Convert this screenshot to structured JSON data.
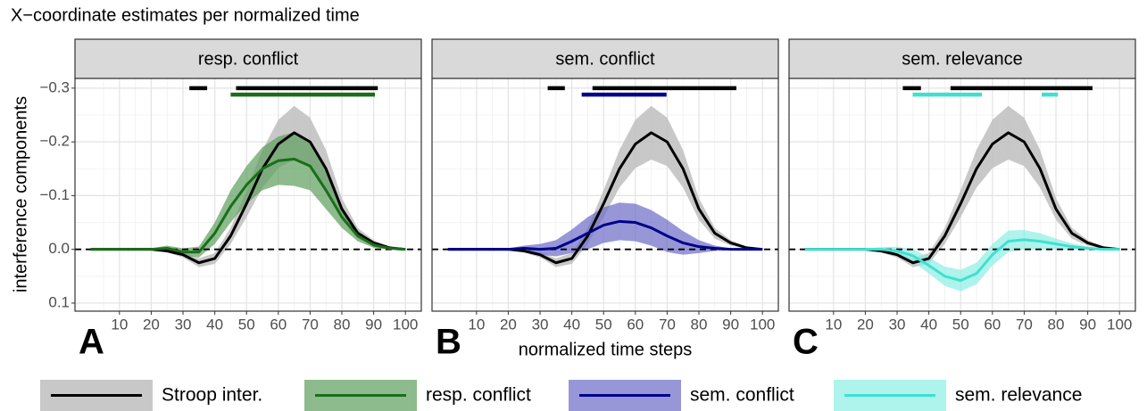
{
  "title": "X−coordinate estimates per normalized time",
  "y_label": "interference components",
  "x_label": "normalized time steps",
  "chart_data": [
    {
      "type": "line",
      "title": "resp. conflict",
      "panel_label": "A",
      "x": [
        1,
        5,
        10,
        15,
        20,
        25,
        30,
        35,
        40,
        45,
        50,
        55,
        60,
        65,
        70,
        75,
        80,
        85,
        90,
        95,
        100
      ],
      "xlim": [
        -4,
        105
      ],
      "xticks": [
        10,
        20,
        30,
        40,
        50,
        60,
        70,
        80,
        90,
        100
      ],
      "ylim": [
        -0.318,
        0.115
      ],
      "y_reversed": true,
      "grid": true,
      "hline": 0,
      "yticks": [
        {
          "value": -0.3,
          "label": "−0.3"
        },
        {
          "value": -0.2,
          "label": "−0.2"
        },
        {
          "value": -0.1,
          "label": "−0.1"
        },
        {
          "value": 0,
          "label": "0.0"
        },
        0.1
      ],
      "series": [
        {
          "name": "Stroop inter.",
          "color": "#000000",
          "band_color": "#bebebe",
          "values": [
            0,
            0,
            0,
            0,
            0,
            0.003,
            0.01,
            0.025,
            0.017,
            -0.025,
            -0.085,
            -0.15,
            -0.196,
            -0.217,
            -0.2,
            -0.15,
            -0.075,
            -0.03,
            -0.012,
            -0.003,
            0
          ],
          "lower": [
            0,
            0,
            0,
            0,
            -0.001,
            0,
            0.005,
            0.017,
            0.007,
            -0.04,
            -0.11,
            -0.185,
            -0.241,
            -0.267,
            -0.245,
            -0.185,
            -0.095,
            -0.04,
            -0.017,
            -0.005,
            0
          ],
          "upper": [
            0,
            0,
            0,
            0,
            0.001,
            0.006,
            0.015,
            0.033,
            0.027,
            -0.01,
            -0.06,
            -0.115,
            -0.151,
            -0.167,
            -0.155,
            -0.115,
            -0.055,
            -0.02,
            -0.007,
            -0.001,
            0
          ]
        },
        {
          "name": "resp. conflict",
          "color": "#1a6e1a",
          "band_color": "#5c9e5c",
          "values": [
            0,
            0,
            0,
            0,
            0,
            -0.002,
            0.005,
            0.005,
            -0.03,
            -0.08,
            -0.12,
            -0.15,
            -0.165,
            -0.168,
            -0.155,
            -0.11,
            -0.06,
            -0.025,
            -0.008,
            -0.002,
            0
          ],
          "lower": [
            0,
            0,
            0,
            0,
            -0.002,
            -0.007,
            -0.002,
            -0.005,
            -0.05,
            -0.11,
            -0.155,
            -0.19,
            -0.21,
            -0.218,
            -0.2,
            -0.145,
            -0.08,
            -0.035,
            -0.013,
            -0.004,
            0
          ],
          "upper": [
            0,
            0,
            0,
            0,
            0.002,
            0.003,
            0.012,
            0.015,
            -0.01,
            -0.05,
            -0.085,
            -0.11,
            -0.12,
            -0.118,
            -0.11,
            -0.075,
            -0.04,
            -0.015,
            -0.003,
            0,
            0
          ]
        }
      ],
      "significance": [
        {
          "color": "#000000",
          "y": -0.3,
          "intervals": [
            [
              32,
              37.6
            ],
            [
              46.7,
              91.3
            ]
          ]
        },
        {
          "color": "#1a6e1a",
          "y": -0.288,
          "intervals": [
            [
              45,
              90.4
            ]
          ]
        }
      ]
    },
    {
      "type": "line",
      "title": "sem. conflict",
      "panel_label": "B",
      "x": [
        1,
        5,
        10,
        15,
        20,
        25,
        30,
        35,
        40,
        45,
        50,
        55,
        60,
        65,
        70,
        75,
        80,
        85,
        90,
        95,
        100
      ],
      "xlim": [
        -4,
        105
      ],
      "xticks": [
        10,
        20,
        30,
        40,
        50,
        60,
        70,
        80,
        90,
        100
      ],
      "ylim": [
        -0.318,
        0.115
      ],
      "y_reversed": true,
      "grid": true,
      "hline": 0,
      "series": [
        {
          "name": "Stroop inter.",
          "color": "#000000",
          "band_color": "#bebebe",
          "values": [
            0,
            0,
            0,
            0,
            0,
            0.003,
            0.01,
            0.025,
            0.017,
            -0.025,
            -0.085,
            -0.15,
            -0.196,
            -0.217,
            -0.2,
            -0.15,
            -0.075,
            -0.03,
            -0.012,
            -0.003,
            0
          ],
          "lower": [
            0,
            0,
            0,
            0,
            -0.001,
            0,
            0.005,
            0.017,
            0.007,
            -0.04,
            -0.11,
            -0.185,
            -0.241,
            -0.267,
            -0.245,
            -0.185,
            -0.095,
            -0.04,
            -0.017,
            -0.005,
            0
          ],
          "upper": [
            0,
            0,
            0,
            0,
            0.001,
            0.006,
            0.015,
            0.033,
            0.027,
            -0.01,
            -0.06,
            -0.115,
            -0.151,
            -0.167,
            -0.155,
            -0.115,
            -0.055,
            -0.02,
            -0.007,
            -0.001,
            0
          ]
        },
        {
          "name": "sem. conflict",
          "color": "#00008b",
          "band_color": "#6b6bc8",
          "values": [
            0,
            0,
            0,
            0,
            0,
            -0.002,
            0,
            -0.002,
            -0.015,
            -0.03,
            -0.045,
            -0.052,
            -0.05,
            -0.04,
            -0.025,
            -0.012,
            -0.005,
            -0.002,
            0,
            0,
            0
          ],
          "lower": [
            0,
            0,
            0,
            0,
            -0.002,
            -0.007,
            -0.01,
            -0.017,
            -0.037,
            -0.06,
            -0.078,
            -0.087,
            -0.085,
            -0.073,
            -0.055,
            -0.034,
            -0.017,
            -0.007,
            -0.002,
            0,
            0
          ],
          "upper": [
            0,
            0,
            0,
            0,
            0.002,
            0.003,
            0.01,
            0.013,
            0.007,
            0,
            -0.012,
            -0.017,
            -0.015,
            -0.007,
            0.005,
            0.01,
            0.007,
            0.003,
            0.002,
            0,
            0
          ]
        }
      ],
      "significance": [
        {
          "color": "#000000",
          "y": -0.3,
          "intervals": [
            [
              32.4,
              37.8
            ],
            [
              46.5,
              91.8
            ]
          ]
        },
        {
          "color": "#00008b",
          "y": -0.288,
          "intervals": [
            [
              43.1,
              69.8
            ]
          ]
        }
      ]
    },
    {
      "type": "line",
      "title": "sem. relevance",
      "panel_label": "C",
      "x": [
        1,
        5,
        10,
        15,
        20,
        25,
        30,
        35,
        40,
        45,
        50,
        55,
        60,
        65,
        70,
        75,
        80,
        85,
        90,
        95,
        100
      ],
      "xlim": [
        -4,
        105
      ],
      "xticks": [
        10,
        20,
        30,
        40,
        50,
        60,
        70,
        80,
        90,
        100
      ],
      "ylim": [
        -0.318,
        0.115
      ],
      "y_reversed": true,
      "grid": true,
      "hline": 0,
      "series": [
        {
          "name": "Stroop inter.",
          "color": "#000000",
          "band_color": "#bebebe",
          "values": [
            0,
            0,
            0,
            0,
            0,
            0.003,
            0.01,
            0.025,
            0.017,
            -0.025,
            -0.085,
            -0.15,
            -0.196,
            -0.217,
            -0.2,
            -0.15,
            -0.075,
            -0.03,
            -0.012,
            -0.003,
            0
          ],
          "lower": [
            0,
            0,
            0,
            0,
            -0.001,
            0,
            0.005,
            0.017,
            0.007,
            -0.04,
            -0.11,
            -0.185,
            -0.241,
            -0.267,
            -0.245,
            -0.185,
            -0.095,
            -0.04,
            -0.017,
            -0.005,
            0
          ],
          "upper": [
            0,
            0,
            0,
            0,
            0.001,
            0.006,
            0.015,
            0.033,
            0.027,
            -0.01,
            -0.06,
            -0.115,
            -0.151,
            -0.167,
            -0.155,
            -0.115,
            -0.055,
            -0.02,
            -0.007,
            -0.001,
            0
          ]
        },
        {
          "name": "sem. relevance",
          "color": "#40e0d0",
          "band_color": "#8ceee4",
          "values": [
            0,
            0,
            0,
            0,
            0,
            0,
            0.003,
            0.012,
            0.03,
            0.05,
            0.058,
            0.045,
            0.01,
            -0.015,
            -0.018,
            -0.015,
            -0.01,
            -0.005,
            -0.002,
            0,
            0
          ],
          "lower": [
            0,
            0,
            0,
            0,
            -0.002,
            -0.004,
            -0.005,
            0,
            0.015,
            0.032,
            0.038,
            0.025,
            -0.01,
            -0.035,
            -0.036,
            -0.03,
            -0.02,
            -0.011,
            -0.005,
            -0.001,
            0
          ],
          "upper": [
            0,
            0,
            0,
            0,
            0.002,
            0.004,
            0.011,
            0.024,
            0.045,
            0.068,
            0.078,
            0.065,
            0.03,
            0.005,
            0,
            0,
            0,
            0.001,
            0.001,
            0.001,
            0
          ]
        }
      ],
      "significance": [
        {
          "color": "#000000",
          "y": -0.3,
          "intervals": [
            [
              31.8,
              37.5
            ],
            [
              46.8,
              91.5
            ]
          ]
        },
        {
          "color": "#40e0d0",
          "y": -0.288,
          "intervals": [
            [
              34.9,
              56.7
            ],
            [
              75.5,
              80.6
            ]
          ]
        }
      ]
    }
  ]
}
